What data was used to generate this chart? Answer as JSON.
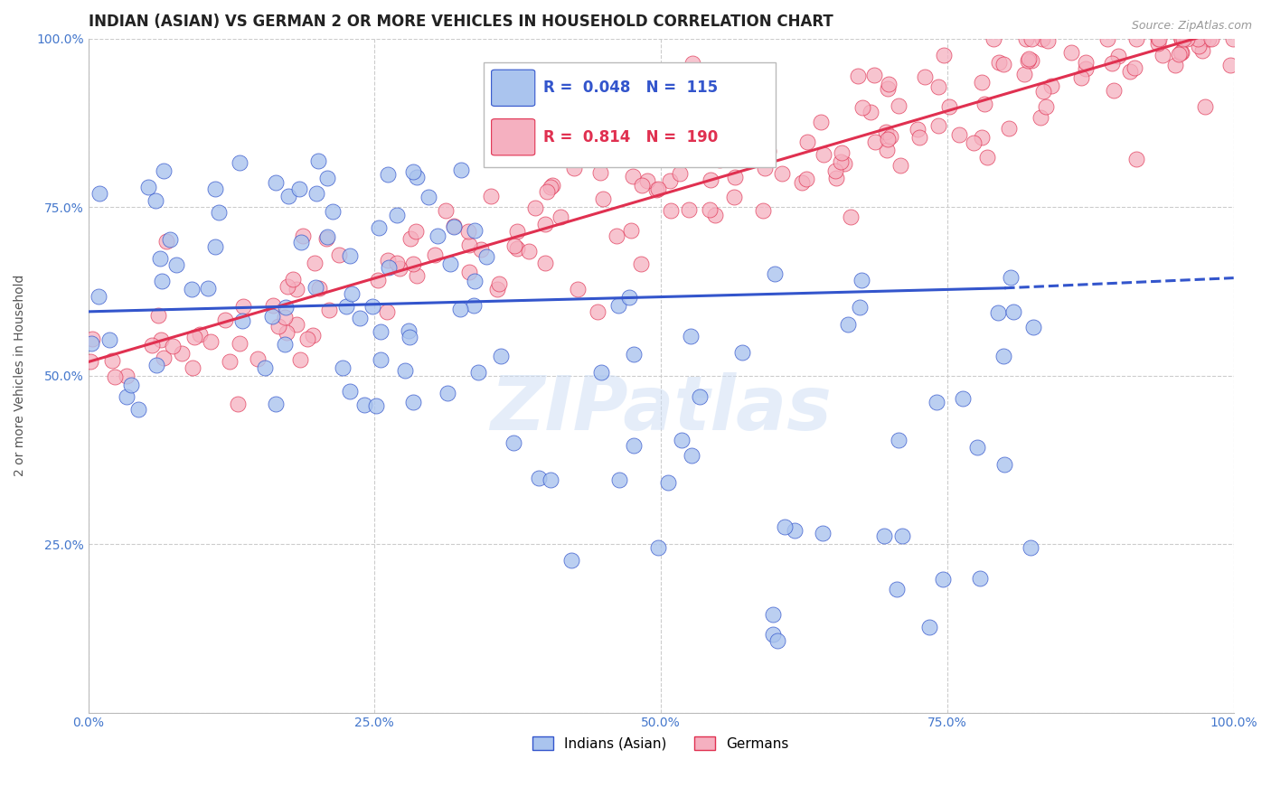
{
  "title": "INDIAN (ASIAN) VS GERMAN 2 OR MORE VEHICLES IN HOUSEHOLD CORRELATION CHART",
  "source": "Source: ZipAtlas.com",
  "ylabel": "2 or more Vehicles in Household",
  "xlim": [
    0.0,
    1.0
  ],
  "ylim": [
    0.0,
    1.0
  ],
  "x_ticks": [
    0.0,
    0.25,
    0.5,
    0.75,
    1.0
  ],
  "x_tick_labels": [
    "0.0%",
    "25.0%",
    "50.0%",
    "75.0%",
    "100.0%"
  ],
  "y_ticks": [
    0.0,
    0.25,
    0.5,
    0.75,
    1.0
  ],
  "y_tick_labels": [
    "",
    "25.0%",
    "50.0%",
    "75.0%",
    "100.0%"
  ],
  "legend_labels": [
    "Indians (Asian)",
    "Germans"
  ],
  "blue_color": "#aac4ee",
  "pink_color": "#f5b0c0",
  "blue_line_color": "#3355cc",
  "pink_line_color": "#e03050",
  "blue_R": 0.048,
  "blue_N": 115,
  "pink_R": 0.814,
  "pink_N": 190,
  "watermark": "ZIPatlas",
  "title_color": "#222222",
  "tick_color": "#4477cc",
  "grid_color": "#cccccc"
}
